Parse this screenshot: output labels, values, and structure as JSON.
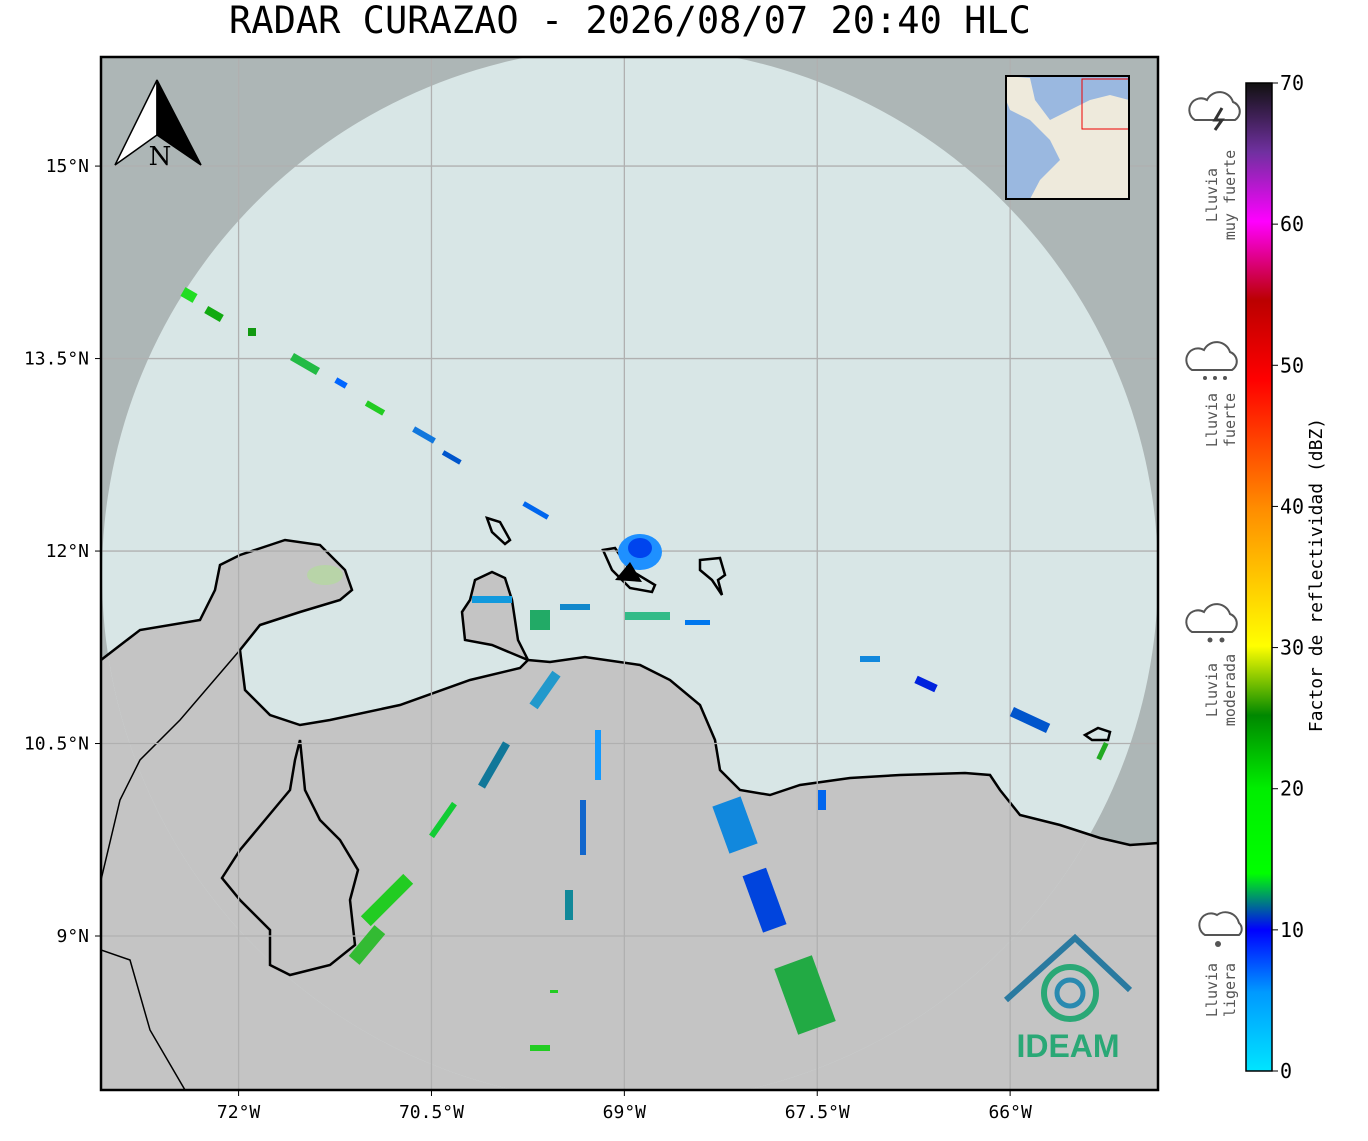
{
  "title": "RADAR CURAZAO - 2026/08/07 20:40 HLC",
  "north_arrow": "N",
  "map": {
    "lon_range": [
      -73.07,
      -64.85
    ],
    "lat_range": [
      7.8,
      15.85
    ],
    "lon_ticks": [
      {
        "value": -72,
        "label": "72°W"
      },
      {
        "value": -70.5,
        "label": "70.5°W"
      },
      {
        "value": -69,
        "label": "69°W"
      },
      {
        "value": -67.5,
        "label": "67.5°W"
      },
      {
        "value": -66,
        "label": "66°W"
      }
    ],
    "lat_ticks": [
      {
        "value": 15,
        "label": "15°N"
      },
      {
        "value": 13.5,
        "label": "13.5°N"
      },
      {
        "value": 12,
        "label": "12°N"
      },
      {
        "value": 10.5,
        "label": "10.5°N"
      },
      {
        "value": 9,
        "label": "9°N"
      }
    ]
  },
  "colorbar": {
    "label": "Factor de reflectividad (dBZ)",
    "range": [
      0,
      70
    ],
    "ticks": [
      0,
      10,
      20,
      30,
      40,
      50,
      60,
      70
    ]
  },
  "rain_categories": [
    {
      "lines": [
        "Lluvia",
        "muy fuerte"
      ]
    },
    {
      "lines": [
        "Lluvia",
        "fuerte"
      ]
    },
    {
      "lines": [
        "Lluvia",
        "moderada"
      ]
    },
    {
      "lines": [
        "Lluvia",
        "ligera"
      ]
    }
  ],
  "logo": "IDEAM"
}
